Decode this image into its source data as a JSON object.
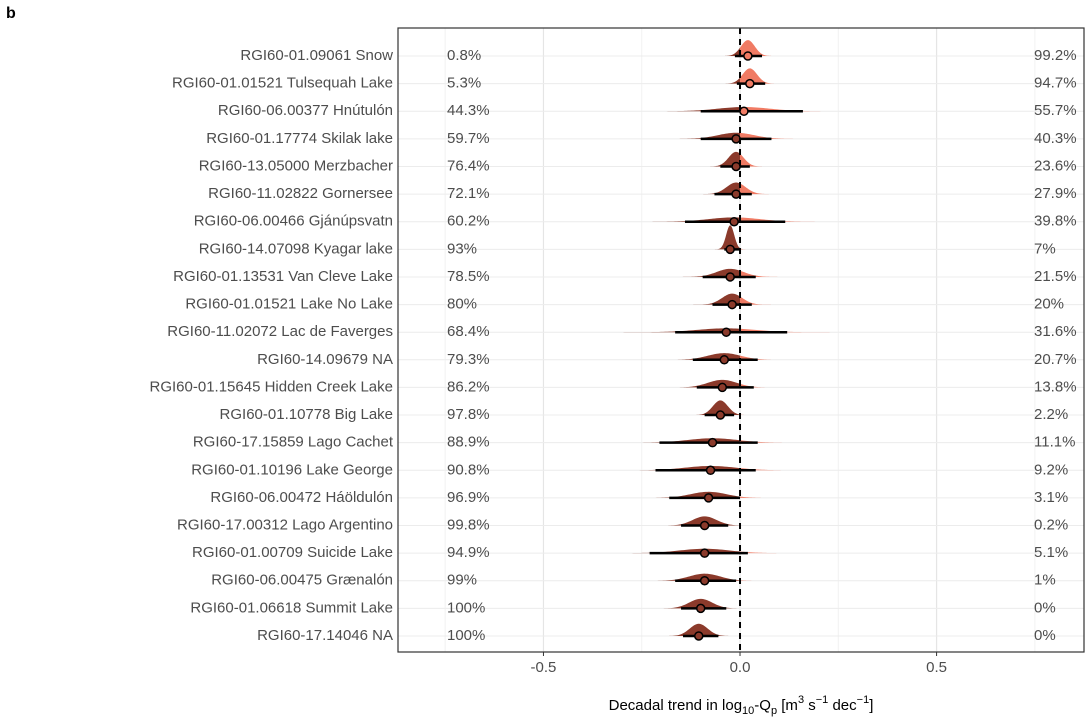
{
  "chart_data": {
    "type": "halfeye",
    "panel_label": "b",
    "xlabel": [
      "Decadal trend in log",
      "10",
      "-Q",
      "p",
      " [m",
      "3",
      " s",
      "−1",
      " dec",
      "−1",
      "]"
    ],
    "categories": [
      "RGI60-01.09061 Snow",
      "RGI60-01.01521 Tulsequah Lake",
      "RGI60-06.00377 Hnútulón",
      "RGI60-01.17774 Skilak lake",
      "RGI60-13.05000 Merzbacher",
      "RGI60-11.02822 Gornersee",
      "RGI60-06.00466 Gjánúpsvatn",
      "RGI60-14.07098 Kyagar lake",
      "RGI60-01.13531 Van Cleve Lake",
      "RGI60-01.01521 Lake No Lake",
      "RGI60-11.02072 Lac de Faverges",
      "RGI60-14.09679 NA",
      "RGI60-01.15645 Hidden Creek Lake",
      "RGI60-01.10778 Big Lake",
      "RGI60-17.15859 Lago Cachet",
      "RGI60-01.10196 Lake George",
      "RGI60-06.00472 Háöldulón",
      "RGI60-17.00312 Lago Argentino",
      "RGI60-01.00709 Suicide Lake",
      "RGI60-06.00475 Grænalón",
      "RGI60-01.06618 Summit Lake",
      "RGI60-17.14046 NA"
    ],
    "estimate": [
      0.02,
      0.025,
      0.01,
      -0.01,
      -0.01,
      -0.01,
      -0.015,
      -0.025,
      -0.025,
      -0.02,
      -0.035,
      -0.04,
      -0.045,
      -0.05,
      -0.07,
      -0.075,
      -0.08,
      -0.09,
      -0.09,
      -0.09,
      -0.1,
      -0.105
    ],
    "lower": [
      -0.013,
      -0.008,
      -0.1,
      -0.1,
      -0.05,
      -0.065,
      -0.14,
      -0.04,
      -0.095,
      -0.07,
      -0.165,
      -0.12,
      -0.11,
      -0.09,
      -0.205,
      -0.215,
      -0.18,
      -0.15,
      -0.23,
      -0.165,
      -0.15,
      -0.145
    ],
    "upper": [
      0.056,
      0.064,
      0.16,
      0.08,
      0.025,
      0.03,
      0.115,
      0,
      0.04,
      0.03,
      0.12,
      0.045,
      0.035,
      -0.015,
      0.045,
      0.04,
      0,
      -0.03,
      0.02,
      -0.01,
      -0.035,
      -0.055
    ],
    "share_below": {
      "values": [
        0.8,
        5.3,
        44.3,
        59.7,
        76.4,
        72.1,
        60.2,
        93,
        78.5,
        80,
        68.4,
        79.3,
        86.2,
        97.8,
        88.9,
        90.8,
        96.9,
        99.8,
        94.9,
        99,
        100,
        100
      ],
      "value_labels": [
        "0.8%",
        "5.3%",
        "44.3%",
        "59.7%",
        "76.4%",
        "72.1%",
        "60.2%",
        "93%",
        "78.5%",
        "80%",
        "68.4%",
        "79.3%",
        "86.2%",
        "97.8%",
        "88.9%",
        "90.8%",
        "96.9%",
        "99.8%",
        "94.9%",
        "99%",
        "100%",
        "100%"
      ]
    },
    "share_above": {
      "values": [
        99.2,
        94.7,
        55.7,
        40.3,
        23.6,
        27.9,
        39.8,
        7,
        21.5,
        20,
        31.6,
        20.7,
        13.8,
        2.2,
        11.1,
        9.2,
        3.1,
        0.2,
        5.1,
        1,
        0,
        0
      ],
      "value_labels": [
        "99.2%",
        "94.7%",
        "55.7%",
        "40.3%",
        "23.6%",
        "27.9%",
        "39.8%",
        "7%",
        "21.5%",
        "20%",
        "31.6%",
        "20.7%",
        "13.8%",
        "2.2%",
        "11.1%",
        "9.2%",
        "3.1%",
        "0.2%",
        "5.1%",
        "1%",
        "0%",
        "0%"
      ]
    },
    "xlim": [
      -0.87,
      0.875
    ],
    "xticks": [
      -0.5,
      {
        "value": 0,
        "label": "0.0"
      },
      0.5
    ],
    "minor_grid": [
      -0.75,
      -0.25,
      0.25,
      0.75
    ],
    "reference_line": 0,
    "grid": true,
    "colors": {
      "negative": "#8b3a2b",
      "positive": "#f07b64"
    }
  }
}
